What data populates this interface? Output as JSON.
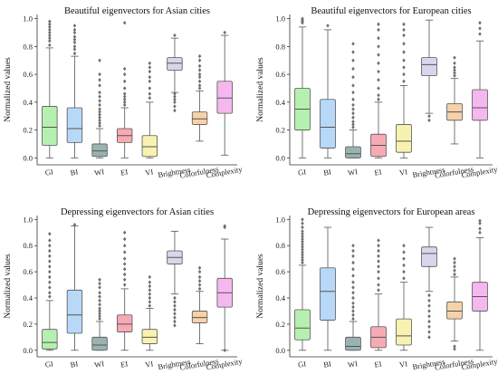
{
  "chart_data": [
    {
      "type": "box",
      "title": "Beautiful eigenvectors for Asian cities",
      "ylabel": "Normalized values",
      "ylim": [
        -0.05,
        1.03
      ],
      "yticks": [
        0.0,
        0.2,
        0.4,
        0.6,
        0.8,
        1.0
      ],
      "yticklabels": [
        "0.0",
        "0.2",
        "0.4",
        "0.6",
        "0.8",
        "1.0"
      ],
      "categories": [
        "GI",
        "BI",
        "WI",
        "EI",
        "VI",
        "Brightness",
        "Colorfulness",
        "Complexity"
      ],
      "boxes": [
        {
          "category": "GI",
          "whisker_low": 0.0,
          "q1": 0.09,
          "median": 0.22,
          "q3": 0.37,
          "whisker_high": 0.79,
          "outliers_high": [
            0.81,
            0.84,
            0.86,
            0.88,
            0.9,
            0.92,
            0.94,
            0.96,
            0.98
          ]
        },
        {
          "category": "BI",
          "whisker_low": 0.0,
          "q1": 0.11,
          "median": 0.21,
          "q3": 0.36,
          "whisker_high": 0.73,
          "outliers_high": [
            0.75,
            0.78,
            0.8,
            0.83,
            0.85,
            0.87,
            0.9,
            0.92,
            0.95
          ]
        },
        {
          "category": "WI",
          "whisker_low": 0.0,
          "q1": 0.01,
          "median": 0.05,
          "q3": 0.1,
          "whisker_high": 0.21,
          "outliers_high": [
            0.23,
            0.25,
            0.27,
            0.29,
            0.31,
            0.33,
            0.35,
            0.38,
            0.41,
            0.44,
            0.47,
            0.52,
            0.56,
            0.6,
            0.7
          ]
        },
        {
          "category": "EI",
          "whisker_low": 0.0,
          "q1": 0.11,
          "median": 0.16,
          "q3": 0.21,
          "whisker_high": 0.36,
          "outliers_high": [
            0.38,
            0.4,
            0.42,
            0.44,
            0.46,
            0.5,
            0.55,
            0.6,
            0.64,
            0.97
          ]
        },
        {
          "category": "VI",
          "whisker_low": 0.0,
          "q1": 0.01,
          "median": 0.08,
          "q3": 0.16,
          "whisker_high": 0.4,
          "outliers_high": [
            0.43,
            0.46,
            0.5,
            0.55,
            0.58,
            0.62,
            0.65,
            0.68
          ]
        },
        {
          "category": "Brightness",
          "whisker_low": 0.47,
          "q1": 0.63,
          "median": 0.68,
          "q3": 0.72,
          "whisker_high": 0.86,
          "outliers_low": [
            0.34,
            0.37,
            0.4,
            0.42,
            0.44,
            0.46
          ],
          "outliers_high": [
            0.88
          ]
        },
        {
          "category": "Colorfulness",
          "whisker_low": 0.12,
          "q1": 0.24,
          "median": 0.28,
          "q3": 0.33,
          "whisker_high": 0.48,
          "outliers_high": [
            0.5,
            0.52,
            0.55,
            0.58,
            0.6,
            0.63,
            0.66,
            0.7,
            0.73
          ]
        },
        {
          "category": "Complexity",
          "whisker_low": 0.02,
          "q1": 0.32,
          "median": 0.43,
          "q3": 0.55,
          "whisker_high": 0.88,
          "outliers_high": [
            0.9
          ]
        }
      ]
    },
    {
      "type": "box",
      "title": "Beautiful eigenvectors for European cities",
      "ylabel": "Normalized values",
      "ylim": [
        -0.05,
        1.03
      ],
      "yticks": [
        0.0,
        0.2,
        0.4,
        0.6,
        0.8,
        1.0
      ],
      "yticklabels": [
        "0.0",
        "0.2",
        "0.4",
        "0.6",
        "0.8",
        "1.0"
      ],
      "categories": [
        "GI",
        "BI",
        "WI",
        "EI",
        "VI",
        "Brightness",
        "Colorfulness",
        "Complexity"
      ],
      "boxes": [
        {
          "category": "GI",
          "whisker_low": 0.0,
          "q1": 0.2,
          "median": 0.35,
          "q3": 0.5,
          "whisker_high": 0.94,
          "outliers_high": [
            0.97,
            0.98,
            0.99,
            1.0
          ]
        },
        {
          "category": "BI",
          "whisker_low": 0.0,
          "q1": 0.07,
          "median": 0.22,
          "q3": 0.42,
          "whisker_high": 0.92,
          "outliers_high": [
            0.95
          ]
        },
        {
          "category": "WI",
          "whisker_low": 0.0,
          "q1": 0.0,
          "median": 0.03,
          "q3": 0.08,
          "whisker_high": 0.2,
          "outliers_high": [
            0.22,
            0.24,
            0.26,
            0.29,
            0.32,
            0.35,
            0.38,
            0.42,
            0.47,
            0.52,
            0.58,
            0.64,
            0.7,
            0.76,
            0.82
          ]
        },
        {
          "category": "EI",
          "whisker_low": 0.0,
          "q1": 0.01,
          "median": 0.09,
          "q3": 0.17,
          "whisker_high": 0.4,
          "outliers_high": [
            0.42,
            0.45,
            0.5,
            0.56,
            0.62,
            0.68,
            0.74,
            0.8,
            0.86,
            0.92,
            0.96
          ]
        },
        {
          "category": "VI",
          "whisker_low": 0.0,
          "q1": 0.04,
          "median": 0.12,
          "q3": 0.24,
          "whisker_high": 0.52,
          "outliers_high": [
            0.55,
            0.6,
            0.65,
            0.7,
            0.76,
            0.82,
            0.88,
            0.92,
            0.96
          ]
        },
        {
          "category": "Brightness",
          "whisker_low": 0.32,
          "q1": 0.59,
          "median": 0.67,
          "q3": 0.72,
          "whisker_high": 0.99,
          "outliers_low": [
            0.27,
            0.3
          ]
        },
        {
          "category": "Colorfulness",
          "whisker_low": 0.1,
          "q1": 0.27,
          "median": 0.33,
          "q3": 0.39,
          "whisker_high": 0.57,
          "outliers_high": [
            0.59,
            0.61,
            0.63,
            0.65,
            0.68,
            0.72
          ]
        },
        {
          "category": "Complexity",
          "whisker_low": 0.0,
          "q1": 0.27,
          "median": 0.36,
          "q3": 0.49,
          "whisker_high": 0.84,
          "outliers_high": [
            0.89,
            0.93,
            0.97
          ]
        }
      ]
    },
    {
      "type": "box",
      "title": "Depressing eigenvectors for Asian cities",
      "ylabel": "Normalized values",
      "ylim": [
        -0.05,
        1.03
      ],
      "yticks": [
        0.0,
        0.2,
        0.4,
        0.6,
        0.8,
        1.0
      ],
      "yticklabels": [
        "0.0",
        "0.2",
        "0.4",
        "0.6",
        "0.8",
        "1.0"
      ],
      "categories": [
        "GI",
        "BI",
        "WI",
        "EI",
        "VI",
        "Brightness",
        "Colorfulness",
        "Complexity"
      ],
      "boxes": [
        {
          "category": "GI",
          "whisker_low": 0.0,
          "q1": 0.01,
          "median": 0.06,
          "q3": 0.16,
          "whisker_high": 0.38,
          "outliers_high": [
            0.41,
            0.44,
            0.48,
            0.52,
            0.56,
            0.6,
            0.64,
            0.68,
            0.72,
            0.76,
            0.8,
            0.84,
            0.89
          ]
        },
        {
          "category": "BI",
          "whisker_low": 0.0,
          "q1": 0.13,
          "median": 0.27,
          "q3": 0.46,
          "whisker_high": 0.95,
          "outliers_high": [
            0.96
          ]
        },
        {
          "category": "WI",
          "whisker_low": 0.0,
          "q1": 0.0,
          "median": 0.04,
          "q3": 0.1,
          "whisker_high": 0.22,
          "outliers_high": [
            0.24,
            0.26,
            0.28,
            0.3,
            0.32,
            0.35,
            0.38,
            0.41,
            0.44,
            0.48,
            0.51,
            0.54
          ]
        },
        {
          "category": "EI",
          "whisker_low": 0.0,
          "q1": 0.14,
          "median": 0.2,
          "q3": 0.27,
          "whisker_high": 0.47,
          "outliers_high": [
            0.5,
            0.54,
            0.58,
            0.62,
            0.66,
            0.7,
            0.75,
            0.8,
            0.85,
            0.9
          ]
        },
        {
          "category": "VI",
          "whisker_low": 0.0,
          "q1": 0.05,
          "median": 0.1,
          "q3": 0.16,
          "whisker_high": 0.32,
          "outliers_high": [
            0.34,
            0.37,
            0.4,
            0.43,
            0.46,
            0.49,
            0.52,
            0.56
          ]
        },
        {
          "category": "Brightness",
          "whisker_low": 0.43,
          "q1": 0.66,
          "median": 0.71,
          "q3": 0.76,
          "whisker_high": 0.91,
          "outliers_low": [
            0.19,
            0.22,
            0.25,
            0.28,
            0.31,
            0.34,
            0.37,
            0.4
          ]
        },
        {
          "category": "Colorfulness",
          "whisker_low": 0.05,
          "q1": 0.21,
          "median": 0.25,
          "q3": 0.3,
          "whisker_high": 0.45,
          "outliers_high": [
            0.47,
            0.5,
            0.53,
            0.56,
            0.6,
            0.63
          ]
        },
        {
          "category": "Complexity",
          "whisker_low": 0.0,
          "q1": 0.33,
          "median": 0.44,
          "q3": 0.55,
          "whisker_high": 0.85,
          "outliers_high": [
            0.94,
            0.95
          ],
          "outliers_low": [
            0.0
          ]
        }
      ]
    },
    {
      "type": "box",
      "title": "Depressing eigenvectors for European areas",
      "ylabel": "Normalized values",
      "ylim": [
        -0.05,
        1.03
      ],
      "yticks": [
        0.0,
        0.2,
        0.4,
        0.6,
        0.8,
        1.0
      ],
      "yticklabels": [
        "0.0",
        "0.2",
        "0.4",
        "0.6",
        "0.8",
        "1.0"
      ],
      "categories": [
        "GI",
        "BI",
        "WI",
        "EI",
        "VI",
        "Brightness",
        "Colorfulness",
        "Complexity"
      ],
      "boxes": [
        {
          "category": "GI",
          "whisker_low": 0.0,
          "q1": 0.08,
          "median": 0.17,
          "q3": 0.31,
          "whisker_high": 0.65,
          "outliers_high": [
            0.67,
            0.69,
            0.71,
            0.73,
            0.75,
            0.77,
            0.79,
            0.81,
            0.83,
            0.85,
            0.87,
            0.89,
            0.91,
            0.94,
            0.97,
            1.0
          ]
        },
        {
          "category": "BI",
          "whisker_low": 0.0,
          "q1": 0.23,
          "median": 0.45,
          "q3": 0.63,
          "whisker_high": 0.94
        },
        {
          "category": "WI",
          "whisker_low": 0.0,
          "q1": 0.0,
          "median": 0.03,
          "q3": 0.1,
          "whisker_high": 0.22,
          "outliers_high": [
            0.24,
            0.27,
            0.3,
            0.33,
            0.36,
            0.4,
            0.44,
            0.48,
            0.52,
            0.57,
            0.62,
            0.67,
            0.72,
            0.76,
            0.8
          ]
        },
        {
          "category": "EI",
          "whisker_low": 0.0,
          "q1": 0.02,
          "median": 0.1,
          "q3": 0.18,
          "whisker_high": 0.43,
          "outliers_high": [
            0.46,
            0.5,
            0.55,
            0.6,
            0.64,
            0.68,
            0.72,
            0.76,
            0.8,
            0.84
          ]
        },
        {
          "category": "VI",
          "whisker_low": 0.0,
          "q1": 0.04,
          "median": 0.11,
          "q3": 0.24,
          "whisker_high": 0.52,
          "outliers_high": [
            0.55,
            0.6,
            0.65,
            0.7,
            0.75,
            0.8
          ]
        },
        {
          "category": "Brightness",
          "whisker_low": 0.45,
          "q1": 0.64,
          "median": 0.74,
          "q3": 0.79,
          "whisker_high": 0.94,
          "outliers_low": [
            0.1,
            0.14,
            0.18,
            0.22,
            0.26,
            0.3,
            0.34,
            0.38,
            0.42
          ]
        },
        {
          "category": "Colorfulness",
          "whisker_low": 0.07,
          "q1": 0.24,
          "median": 0.3,
          "q3": 0.37,
          "whisker_high": 0.56,
          "outliers_high": [
            0.58,
            0.61,
            0.64,
            0.67,
            0.7
          ],
          "outliers_low": [
            0.01,
            0.03
          ]
        },
        {
          "category": "Complexity",
          "whisker_low": 0.0,
          "q1": 0.3,
          "median": 0.41,
          "q3": 0.52,
          "whisker_high": 0.86,
          "outliers_high": [
            0.9,
            0.93,
            0.97,
            0.99
          ]
        }
      ]
    }
  ],
  "colors": {
    "GI": "#b6f0b1",
    "BI": "#b7d8f7",
    "WI": "#9ab3b0",
    "EI": "#f6aab4",
    "VI": "#f8f2b0",
    "Brightness": "#d9d5eb",
    "Colorfulness": "#f6d2a8",
    "Complexity": "#f4b8ee"
  }
}
